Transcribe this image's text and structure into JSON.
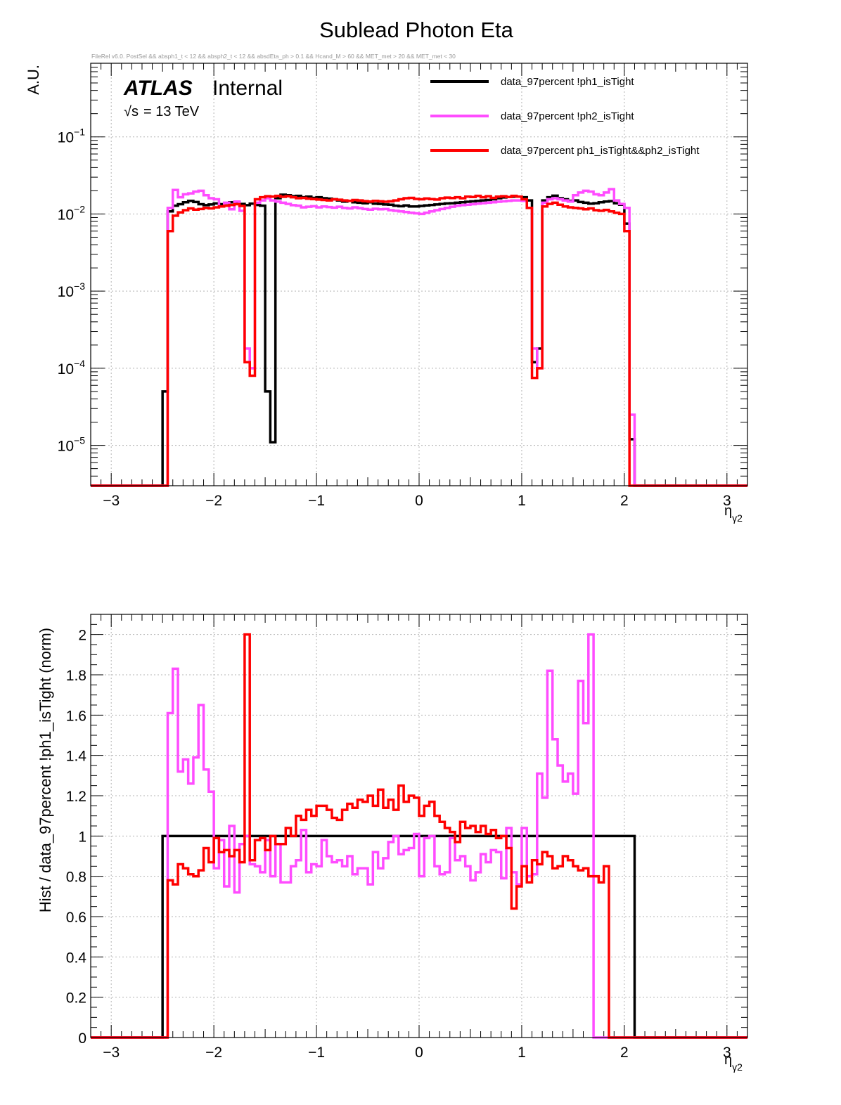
{
  "page": {
    "title": "Sublead Photon Eta",
    "cuts": "FileRel v6.0. PostSel &&  absph1_t < 12 && absph2_t < 12 && absdEta_ph > 0.1 && Hcand_M > 60 && MET_met > 20 && MET_met < 30",
    "atlas_label": "ATLAS",
    "atlas_sub": "Internal",
    "energy_sqrt": "√s",
    "energy_rest": "= 13 TeV"
  },
  "colors": {
    "black": "#000000",
    "pink": "#ff4cff",
    "red": "#ff0000",
    "grid": "#b4b4b4"
  },
  "chart_data": [
    {
      "type": "line",
      "title": "Sublead Photon Eta",
      "xlabel": "η",
      "xlabel_sub": "γ2",
      "ylabel": "A.U.",
      "xlim": [
        -3.2,
        3.2
      ],
      "ylim": [
        3e-06,
        0.9
      ],
      "log_y": true,
      "grid": true,
      "legend": "top-right",
      "x_ticks": [
        -3,
        -2,
        -1,
        0,
        1,
        2,
        3
      ],
      "x_ticklabels": [
        "−3",
        "−2",
        "−1",
        "0",
        "1",
        "2",
        "3"
      ],
      "y_ticks": [
        1e-05,
        0.0001,
        0.001,
        0.01,
        0.1
      ],
      "y_ticklabels_base": [
        "10",
        "10",
        "10",
        "10",
        "10"
      ],
      "y_ticklabels_exp": [
        "−5",
        "−4",
        "−3",
        "−2",
        "−1"
      ],
      "bin_start": -2.5,
      "bin_width": 0.05,
      "series": [
        {
          "name": "data_97percent  !ph1_isTight",
          "color_key": "black",
          "values": [
            5e-05,
            0.0108,
            0.0128,
            0.0134,
            0.0142,
            0.0148,
            0.0143,
            0.0134,
            0.013,
            0.0133,
            0.0137,
            0.0134,
            0.0139,
            0.0142,
            0.014,
            0.0135,
            0.013,
            0.0136,
            0.0131,
            0.0128,
            5e-05,
            1.1e-05,
            0.016,
            0.0178,
            0.0175,
            0.017,
            0.0172,
            0.0165,
            0.0168,
            0.0162,
            0.0165,
            0.016,
            0.0158,
            0.0155,
            0.015,
            0.0145,
            0.0148,
            0.0142,
            0.014,
            0.0138,
            0.0142,
            0.0136,
            0.0135,
            0.0133,
            0.0132,
            0.0128,
            0.0126,
            0.0129,
            0.0125,
            0.0125,
            0.0127,
            0.0129,
            0.0131,
            0.0133,
            0.0135,
            0.0137,
            0.0138,
            0.014,
            0.0142,
            0.0144,
            0.0146,
            0.0148,
            0.015,
            0.0152,
            0.0155,
            0.016,
            0.0164,
            0.0166,
            0.0168,
            0.0168,
            0.0165,
            0.015,
            0.00012,
            0.00018,
            0.015,
            0.0165,
            0.0173,
            0.016,
            0.0155,
            0.0148,
            0.015,
            0.0143,
            0.014,
            0.0136,
            0.0138,
            0.0142,
            0.0145,
            0.0147,
            0.0138,
            0.0132,
            0.0075,
            1.2e-05
          ]
        },
        {
          "name": "data_97percent  !ph2_isTight",
          "color_key": "pink",
          "values": [
            0,
            0.012,
            0.0205,
            0.0165,
            0.018,
            0.0185,
            0.0195,
            0.02,
            0.0175,
            0.016,
            0.0155,
            0.0125,
            0.014,
            0.0115,
            0.0145,
            0.011,
            0.00018,
            0.0001,
            0.014,
            0.015,
            0.016,
            0.015,
            0.0145,
            0.014,
            0.0135,
            0.013,
            0.0128,
            0.0122,
            0.0124,
            0.0126,
            0.0122,
            0.0125,
            0.0123,
            0.0121,
            0.0124,
            0.012,
            0.0118,
            0.0122,
            0.0119,
            0.0116,
            0.0114,
            0.0117,
            0.0115,
            0.0116,
            0.0112,
            0.011,
            0.0108,
            0.0106,
            0.0104,
            0.0102,
            0.01,
            0.0104,
            0.0108,
            0.0112,
            0.0116,
            0.012,
            0.0124,
            0.0128,
            0.013,
            0.0132,
            0.0134,
            0.0136,
            0.0138,
            0.014,
            0.0142,
            0.0144,
            0.0146,
            0.0148,
            0.015,
            0.015,
            0.0148,
            0.012,
            0.00018,
            0.0001,
            0.014,
            0.0155,
            0.016,
            0.0155,
            0.015,
            0.0145,
            0.0175,
            0.019,
            0.02,
            0.0195,
            0.018,
            0.0175,
            0.019,
            0.021,
            0.015,
            0.0135,
            0.012,
            2.5e-05
          ]
        },
        {
          "name": "data_97percent  ph1_isTight&&ph2_isTight",
          "color_key": "red",
          "values": [
            0,
            0.006,
            0.0095,
            0.0105,
            0.0112,
            0.0118,
            0.0114,
            0.0116,
            0.012,
            0.0118,
            0.0122,
            0.0125,
            0.0128,
            0.0131,
            0.0134,
            0.0127,
            0.00012,
            8e-05,
            0.0155,
            0.0165,
            0.017,
            0.0168,
            0.0172,
            0.0167,
            0.017,
            0.0165,
            0.016,
            0.0162,
            0.0158,
            0.0156,
            0.0154,
            0.0152,
            0.015,
            0.0155,
            0.0153,
            0.015,
            0.0148,
            0.0152,
            0.015,
            0.0147,
            0.0145,
            0.0148,
            0.0146,
            0.0144,
            0.0146,
            0.015,
            0.0155,
            0.016,
            0.0162,
            0.0157,
            0.0155,
            0.0159,
            0.0156,
            0.0154,
            0.016,
            0.0163,
            0.0161,
            0.0165,
            0.016,
            0.0168,
            0.0166,
            0.0172,
            0.0165,
            0.017,
            0.0162,
            0.0168,
            0.017,
            0.0166,
            0.0172,
            0.0168,
            0.0155,
            0.012,
            7.5e-05,
            0.0001,
            0.0125,
            0.0135,
            0.014,
            0.0132,
            0.0125,
            0.0122,
            0.012,
            0.0118,
            0.0115,
            0.0118,
            0.0112,
            0.011,
            0.0113,
            0.0108,
            0.0104,
            0.01,
            0.006,
            0
          ]
        }
      ]
    },
    {
      "type": "line",
      "xlabel": "η",
      "xlabel_sub": "γ2",
      "ylabel": "Hist / data_97percent  !ph1_isTight (norm)",
      "xlim": [
        -3.2,
        3.2
      ],
      "ylim": [
        0,
        2.1
      ],
      "grid": true,
      "x_ticks": [
        -3,
        -2,
        -1,
        0,
        1,
        2,
        3
      ],
      "x_ticklabels": [
        "−3",
        "−2",
        "−1",
        "0",
        "1",
        "2",
        "3"
      ],
      "y_ticks": [
        0,
        0.2,
        0.4,
        0.6,
        0.8,
        1,
        1.2,
        1.4,
        1.6,
        1.8,
        2
      ],
      "y_ticklabels": [
        "0",
        "0.2",
        "0.4",
        "0.6",
        "0.8",
        "1",
        "1.2",
        "1.4",
        "1.6",
        "1.8",
        "2"
      ],
      "bin_start": -2.5,
      "bin_width": 0.05,
      "series": [
        {
          "name": "data_97percent  !ph1_isTight",
          "color_key": "black",
          "values": [
            1,
            1,
            1,
            1,
            1,
            1,
            1,
            1,
            1,
            1,
            1,
            1,
            1,
            1,
            1,
            1,
            1,
            1,
            1,
            1,
            1,
            1,
            1,
            1,
            1,
            1,
            1,
            1,
            1,
            1,
            1,
            1,
            1,
            1,
            1,
            1,
            1,
            1,
            1,
            1,
            1,
            1,
            1,
            1,
            1,
            1,
            1,
            1,
            1,
            1,
            1,
            1,
            1,
            1,
            1,
            1,
            1,
            1,
            1,
            1,
            1,
            1,
            1,
            1,
            1,
            1,
            1,
            1,
            1,
            1,
            1,
            1,
            1,
            1,
            1,
            1,
            1,
            1,
            1,
            1,
            1,
            1,
            1,
            1,
            1,
            1,
            1,
            1,
            1,
            1,
            1,
            1
          ]
        },
        {
          "name": "data_97percent  !ph2_isTight",
          "color_key": "pink",
          "values": [
            0,
            1.61,
            1.83,
            1.32,
            1.38,
            1.26,
            1.39,
            1.65,
            1.33,
            1.22,
            0.84,
            0.98,
            0.75,
            1.05,
            0.72,
            0.96,
            1.0,
            0.86,
            0.85,
            0.82,
            0.98,
            0.8,
            0.96,
            0.77,
            0.77,
            0.85,
            0.88,
            1.03,
            0.82,
            0.86,
            0.85,
            0.98,
            0.9,
            0.87,
            0.88,
            0.85,
            0.9,
            0.81,
            0.84,
            0.84,
            0.76,
            0.92,
            0.84,
            0.89,
            0.97,
            1.0,
            0.91,
            0.93,
            0.94,
            1.01,
            0.8,
            0.99,
            1.0,
            0.85,
            0.81,
            0.82,
            0.99,
            0.88,
            0.9,
            0.85,
            0.78,
            0.82,
            0.91,
            0.87,
            0.93,
            0.92,
            0.79,
            1.04,
            0.82,
            0.76,
            1.04,
            0.8,
            0.81,
            1.31,
            1.19,
            1.82,
            1.48,
            1.35,
            1.27,
            1.31,
            1.21,
            1.77,
            1.56,
            2.0,
            0,
            0,
            0,
            0,
            0,
            0,
            0,
            0
          ]
        },
        {
          "name": "data_97percent  ph1_isTight&&ph2_isTight",
          "color_key": "red",
          "values": [
            0,
            0.78,
            0.76,
            0.86,
            0.84,
            0.81,
            0.8,
            0.83,
            0.94,
            0.87,
            0.99,
            0.92,
            0.93,
            0.9,
            0.93,
            0.87,
            2.0,
            0.88,
            0.98,
            0.99,
            0.93,
            1.0,
            0.96,
            0.96,
            1.04,
            1.0,
            1.1,
            1.08,
            1.13,
            1.1,
            1.15,
            1.15,
            1.13,
            1.09,
            1.08,
            1.13,
            1.16,
            1.14,
            1.18,
            1.17,
            1.2,
            1.15,
            1.23,
            1.14,
            1.18,
            1.13,
            1.25,
            1.17,
            1.2,
            1.19,
            1.1,
            1.15,
            1.17,
            1.1,
            1.07,
            1.04,
            1.02,
            0.97,
            1.07,
            1.04,
            1.05,
            1.02,
            1.05,
            1.01,
            1.03,
            0.99,
            1.0,
            0.94,
            0.64,
            0.75,
            0.85,
            0.77,
            0.88,
            0.86,
            0.92,
            0.9,
            0.84,
            0.85,
            0.9,
            0.88,
            0.85,
            0.83,
            0.84,
            0.8,
            0.8,
            0.77,
            0.85,
            0,
            0,
            0,
            0,
            0
          ]
        }
      ]
    }
  ]
}
